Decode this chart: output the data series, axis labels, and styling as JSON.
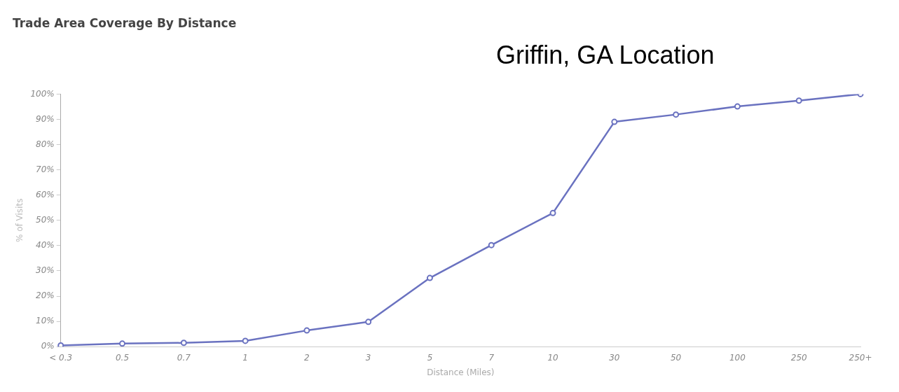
{
  "chart_data": {
    "type": "line",
    "title": "Trade Area Coverage By Distance",
    "annotations": [
      "Griffin, GA Location"
    ],
    "xlabel": "Distance (Miles)",
    "ylabel": "% of Visits",
    "categories": [
      "< 0.3",
      "0.5",
      "0.7",
      "1",
      "2",
      "3",
      "5",
      "7",
      "10",
      "30",
      "50",
      "100",
      "250",
      "250+"
    ],
    "series": [
      {
        "color": "#6a72c0",
        "values": [
          0.5,
          1.2,
          1.5,
          2.3,
          6.4,
          9.8,
          27.2,
          40.2,
          52.9,
          89,
          91.9,
          95.1,
          97.4,
          100
        ]
      }
    ],
    "ylim": [
      0,
      100
    ],
    "yticks": [
      {
        "value": 0,
        "label": "0%"
      },
      {
        "value": 10,
        "label": "10%"
      },
      {
        "value": 20,
        "label": "20%"
      },
      {
        "value": 30,
        "label": "30%"
      },
      {
        "value": 40,
        "label": "40%"
      },
      {
        "value": 50,
        "label": "50%"
      },
      {
        "value": 60,
        "label": "60%"
      },
      {
        "value": 70,
        "label": "70%"
      },
      {
        "value": 80,
        "label": "80%"
      },
      {
        "value": 90,
        "label": "90%"
      },
      {
        "value": 100,
        "label": "100%"
      }
    ],
    "grid": false,
    "legend": false,
    "marker": "circle",
    "line_style": "solid"
  }
}
